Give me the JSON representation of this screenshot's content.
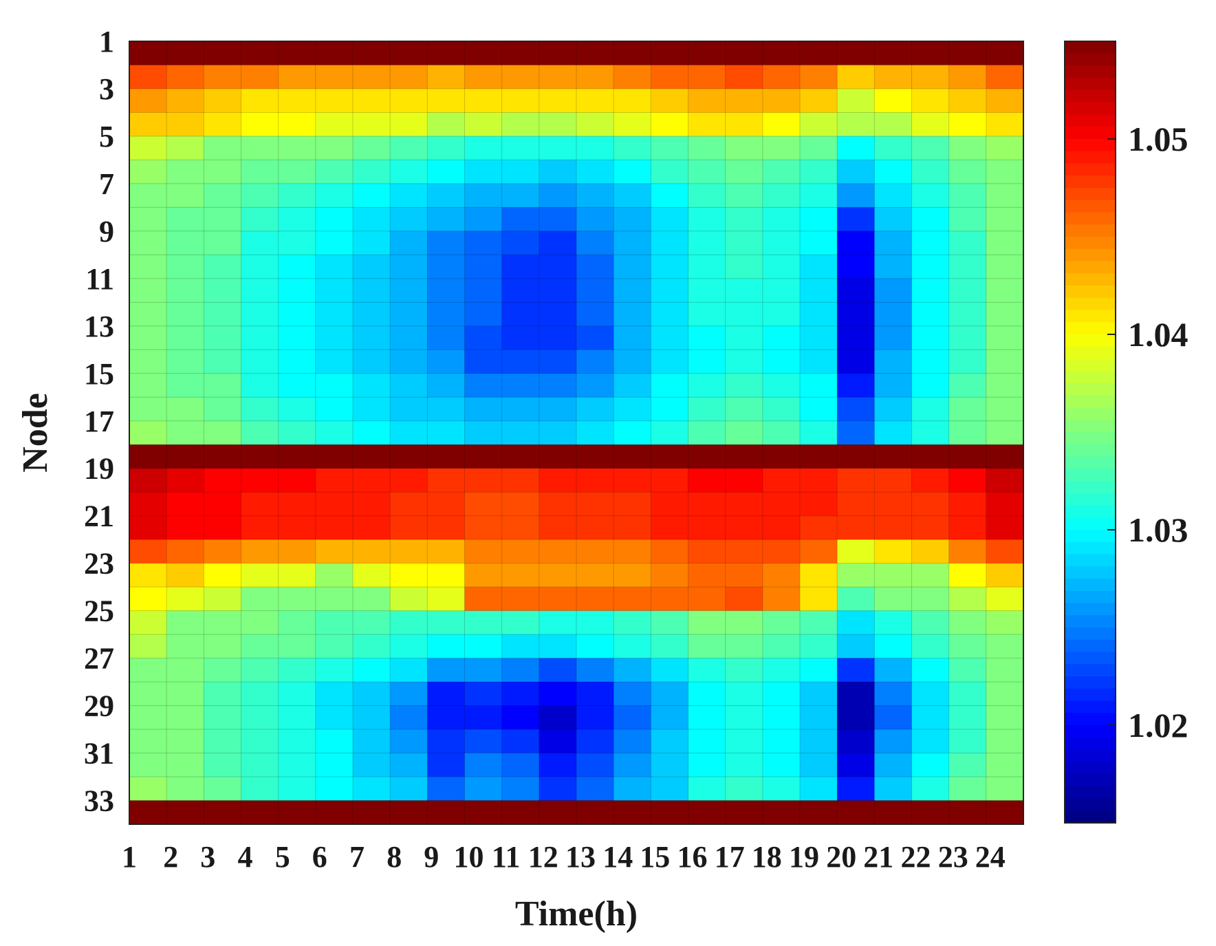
{
  "chart_data": {
    "type": "heatmap",
    "title": "",
    "xlabel": "Time(h)",
    "ylabel": "Node",
    "x_categories": [
      1,
      2,
      3,
      4,
      5,
      6,
      7,
      8,
      9,
      10,
      11,
      12,
      13,
      14,
      15,
      16,
      17,
      18,
      19,
      20,
      21,
      22,
      23,
      24
    ],
    "x_tick_labels": [
      "1",
      "2",
      "3",
      "4",
      "5",
      "6",
      "7",
      "8",
      "9",
      "10",
      "11",
      "12",
      "13",
      "14",
      "15",
      "16",
      "17",
      "18",
      "19",
      "20",
      "21",
      "22",
      "23",
      "24"
    ],
    "y_categories": [
      1,
      2,
      3,
      4,
      5,
      6,
      7,
      8,
      9,
      10,
      11,
      12,
      13,
      14,
      15,
      16,
      17,
      18,
      19,
      20,
      21,
      22,
      23,
      24,
      25,
      26,
      27,
      28,
      29,
      30,
      31,
      32,
      33
    ],
    "y_tick_labels": [
      "1",
      "3",
      "5",
      "7",
      "9",
      "11",
      "13",
      "15",
      "17",
      "19",
      "21",
      "23",
      "25",
      "27",
      "29",
      "31",
      "33"
    ],
    "colorbar": {
      "colormap": "jet",
      "range": [
        1.015,
        1.055
      ],
      "tick_values": [
        1.02,
        1.03,
        1.04,
        1.05
      ],
      "tick_labels": [
        "1.02",
        "1.03",
        "1.04",
        "1.05"
      ]
    },
    "grid": true,
    "values": [
      [
        1.055,
        1.055,
        1.055,
        1.055,
        1.055,
        1.055,
        1.055,
        1.055,
        1.055,
        1.055,
        1.055,
        1.055,
        1.055,
        1.055,
        1.055,
        1.055,
        1.055,
        1.055,
        1.055,
        1.055,
        1.055,
        1.055,
        1.055,
        1.055
      ],
      [
        1.047,
        1.046,
        1.045,
        1.045,
        1.044,
        1.044,
        1.044,
        1.044,
        1.043,
        1.044,
        1.044,
        1.044,
        1.044,
        1.045,
        1.046,
        1.046,
        1.047,
        1.046,
        1.045,
        1.042,
        1.043,
        1.043,
        1.044,
        1.046
      ],
      [
        1.044,
        1.043,
        1.042,
        1.041,
        1.041,
        1.041,
        1.041,
        1.041,
        1.041,
        1.041,
        1.041,
        1.041,
        1.041,
        1.041,
        1.042,
        1.043,
        1.043,
        1.043,
        1.042,
        1.038,
        1.04,
        1.041,
        1.042,
        1.043
      ],
      [
        1.042,
        1.042,
        1.041,
        1.04,
        1.04,
        1.039,
        1.039,
        1.039,
        1.037,
        1.038,
        1.037,
        1.037,
        1.038,
        1.039,
        1.04,
        1.041,
        1.041,
        1.04,
        1.038,
        1.037,
        1.037,
        1.039,
        1.04,
        1.041
      ],
      [
        1.038,
        1.037,
        1.035,
        1.035,
        1.035,
        1.035,
        1.034,
        1.033,
        1.032,
        1.031,
        1.031,
        1.031,
        1.031,
        1.032,
        1.033,
        1.034,
        1.035,
        1.035,
        1.034,
        1.03,
        1.032,
        1.033,
        1.035,
        1.036
      ],
      [
        1.036,
        1.035,
        1.035,
        1.034,
        1.034,
        1.033,
        1.032,
        1.031,
        1.03,
        1.029,
        1.029,
        1.028,
        1.029,
        1.03,
        1.032,
        1.033,
        1.034,
        1.033,
        1.032,
        1.028,
        1.03,
        1.032,
        1.034,
        1.035
      ],
      [
        1.035,
        1.035,
        1.034,
        1.033,
        1.032,
        1.031,
        1.03,
        1.029,
        1.028,
        1.027,
        1.027,
        1.026,
        1.027,
        1.028,
        1.03,
        1.032,
        1.033,
        1.032,
        1.031,
        1.026,
        1.029,
        1.031,
        1.033,
        1.035
      ],
      [
        1.035,
        1.034,
        1.034,
        1.032,
        1.031,
        1.03,
        1.029,
        1.028,
        1.027,
        1.026,
        1.024,
        1.024,
        1.026,
        1.027,
        1.029,
        1.031,
        1.032,
        1.031,
        1.03,
        1.022,
        1.028,
        1.03,
        1.033,
        1.035
      ],
      [
        1.035,
        1.034,
        1.034,
        1.031,
        1.031,
        1.03,
        1.029,
        1.027,
        1.025,
        1.024,
        1.023,
        1.022,
        1.025,
        1.027,
        1.029,
        1.031,
        1.032,
        1.031,
        1.03,
        1.02,
        1.027,
        1.03,
        1.032,
        1.035
      ],
      [
        1.035,
        1.034,
        1.033,
        1.031,
        1.03,
        1.029,
        1.028,
        1.027,
        1.025,
        1.024,
        1.022,
        1.022,
        1.024,
        1.027,
        1.029,
        1.031,
        1.032,
        1.031,
        1.029,
        1.02,
        1.027,
        1.03,
        1.032,
        1.035
      ],
      [
        1.035,
        1.034,
        1.033,
        1.031,
        1.03,
        1.029,
        1.028,
        1.027,
        1.025,
        1.024,
        1.022,
        1.022,
        1.024,
        1.027,
        1.029,
        1.031,
        1.031,
        1.031,
        1.029,
        1.019,
        1.026,
        1.03,
        1.032,
        1.035
      ],
      [
        1.035,
        1.034,
        1.033,
        1.031,
        1.03,
        1.029,
        1.028,
        1.027,
        1.025,
        1.024,
        1.022,
        1.022,
        1.024,
        1.027,
        1.029,
        1.031,
        1.031,
        1.031,
        1.029,
        1.019,
        1.026,
        1.03,
        1.032,
        1.035
      ],
      [
        1.035,
        1.034,
        1.033,
        1.031,
        1.03,
        1.029,
        1.028,
        1.027,
        1.025,
        1.023,
        1.022,
        1.022,
        1.023,
        1.027,
        1.029,
        1.03,
        1.031,
        1.03,
        1.029,
        1.019,
        1.026,
        1.03,
        1.032,
        1.035
      ],
      [
        1.035,
        1.034,
        1.033,
        1.031,
        1.03,
        1.029,
        1.028,
        1.027,
        1.026,
        1.023,
        1.023,
        1.023,
        1.025,
        1.027,
        1.029,
        1.03,
        1.031,
        1.03,
        1.029,
        1.019,
        1.027,
        1.03,
        1.032,
        1.035
      ],
      [
        1.035,
        1.034,
        1.034,
        1.031,
        1.03,
        1.03,
        1.029,
        1.028,
        1.027,
        1.025,
        1.025,
        1.025,
        1.026,
        1.028,
        1.03,
        1.031,
        1.032,
        1.031,
        1.03,
        1.021,
        1.027,
        1.03,
        1.033,
        1.035
      ],
      [
        1.035,
        1.035,
        1.034,
        1.032,
        1.031,
        1.03,
        1.029,
        1.028,
        1.028,
        1.027,
        1.027,
        1.027,
        1.028,
        1.029,
        1.03,
        1.032,
        1.033,
        1.032,
        1.03,
        1.023,
        1.028,
        1.031,
        1.034,
        1.035
      ],
      [
        1.036,
        1.035,
        1.035,
        1.033,
        1.032,
        1.031,
        1.03,
        1.029,
        1.029,
        1.028,
        1.028,
        1.028,
        1.029,
        1.03,
        1.031,
        1.033,
        1.034,
        1.033,
        1.031,
        1.024,
        1.029,
        1.031,
        1.034,
        1.035
      ],
      [
        1.055,
        1.055,
        1.055,
        1.055,
        1.055,
        1.055,
        1.055,
        1.055,
        1.055,
        1.055,
        1.055,
        1.055,
        1.055,
        1.055,
        1.055,
        1.055,
        1.055,
        1.055,
        1.055,
        1.055,
        1.055,
        1.055,
        1.055,
        1.055
      ],
      [
        1.052,
        1.051,
        1.05,
        1.05,
        1.05,
        1.049,
        1.049,
        1.049,
        1.048,
        1.048,
        1.048,
        1.049,
        1.049,
        1.049,
        1.049,
        1.05,
        1.05,
        1.049,
        1.049,
        1.048,
        1.048,
        1.049,
        1.05,
        1.052
      ],
      [
        1.051,
        1.05,
        1.05,
        1.049,
        1.049,
        1.049,
        1.049,
        1.048,
        1.048,
        1.047,
        1.047,
        1.048,
        1.048,
        1.048,
        1.049,
        1.049,
        1.049,
        1.049,
        1.049,
        1.048,
        1.048,
        1.048,
        1.049,
        1.051
      ],
      [
        1.051,
        1.05,
        1.05,
        1.049,
        1.049,
        1.049,
        1.049,
        1.048,
        1.048,
        1.047,
        1.047,
        1.048,
        1.048,
        1.048,
        1.049,
        1.049,
        1.049,
        1.049,
        1.048,
        1.048,
        1.048,
        1.048,
        1.049,
        1.051
      ],
      [
        1.047,
        1.046,
        1.045,
        1.044,
        1.044,
        1.043,
        1.043,
        1.043,
        1.043,
        1.045,
        1.045,
        1.045,
        1.045,
        1.045,
        1.046,
        1.047,
        1.047,
        1.047,
        1.046,
        1.039,
        1.041,
        1.042,
        1.045,
        1.047
      ],
      [
        1.041,
        1.042,
        1.04,
        1.039,
        1.039,
        1.036,
        1.039,
        1.04,
        1.04,
        1.044,
        1.044,
        1.044,
        1.044,
        1.044,
        1.045,
        1.046,
        1.046,
        1.045,
        1.041,
        1.036,
        1.036,
        1.036,
        1.04,
        1.042
      ],
      [
        1.04,
        1.039,
        1.038,
        1.035,
        1.035,
        1.035,
        1.035,
        1.038,
        1.039,
        1.046,
        1.046,
        1.046,
        1.046,
        1.046,
        1.046,
        1.046,
        1.047,
        1.045,
        1.041,
        1.033,
        1.035,
        1.035,
        1.037,
        1.039
      ],
      [
        1.038,
        1.035,
        1.035,
        1.035,
        1.034,
        1.033,
        1.033,
        1.032,
        1.032,
        1.032,
        1.032,
        1.031,
        1.031,
        1.032,
        1.033,
        1.035,
        1.035,
        1.034,
        1.033,
        1.029,
        1.031,
        1.033,
        1.035,
        1.036
      ],
      [
        1.037,
        1.035,
        1.035,
        1.034,
        1.034,
        1.033,
        1.032,
        1.031,
        1.03,
        1.03,
        1.029,
        1.029,
        1.03,
        1.031,
        1.032,
        1.034,
        1.034,
        1.033,
        1.032,
        1.028,
        1.03,
        1.032,
        1.034,
        1.035
      ],
      [
        1.035,
        1.035,
        1.034,
        1.033,
        1.032,
        1.031,
        1.03,
        1.029,
        1.026,
        1.026,
        1.025,
        1.023,
        1.025,
        1.027,
        1.029,
        1.031,
        1.032,
        1.031,
        1.03,
        1.022,
        1.027,
        1.03,
        1.033,
        1.035
      ],
      [
        1.035,
        1.035,
        1.033,
        1.032,
        1.031,
        1.029,
        1.028,
        1.026,
        1.021,
        1.022,
        1.021,
        1.02,
        1.021,
        1.025,
        1.027,
        1.03,
        1.031,
        1.03,
        1.028,
        1.017,
        1.025,
        1.029,
        1.032,
        1.035
      ],
      [
        1.035,
        1.035,
        1.033,
        1.032,
        1.031,
        1.029,
        1.028,
        1.025,
        1.021,
        1.021,
        1.02,
        1.018,
        1.021,
        1.024,
        1.027,
        1.03,
        1.031,
        1.03,
        1.028,
        1.017,
        1.024,
        1.029,
        1.032,
        1.035
      ],
      [
        1.035,
        1.035,
        1.033,
        1.032,
        1.031,
        1.03,
        1.028,
        1.026,
        1.022,
        1.023,
        1.022,
        1.019,
        1.022,
        1.025,
        1.028,
        1.03,
        1.031,
        1.03,
        1.028,
        1.018,
        1.026,
        1.029,
        1.032,
        1.035
      ],
      [
        1.035,
        1.035,
        1.033,
        1.032,
        1.031,
        1.03,
        1.028,
        1.027,
        1.022,
        1.025,
        1.024,
        1.021,
        1.023,
        1.026,
        1.028,
        1.03,
        1.031,
        1.03,
        1.028,
        1.019,
        1.027,
        1.03,
        1.033,
        1.035
      ],
      [
        1.036,
        1.035,
        1.034,
        1.032,
        1.031,
        1.03,
        1.029,
        1.028,
        1.024,
        1.026,
        1.025,
        1.022,
        1.024,
        1.027,
        1.028,
        1.031,
        1.032,
        1.031,
        1.029,
        1.021,
        1.028,
        1.031,
        1.034,
        1.035
      ],
      [
        1.055,
        1.055,
        1.055,
        1.055,
        1.055,
        1.055,
        1.055,
        1.055,
        1.055,
        1.055,
        1.055,
        1.055,
        1.055,
        1.055,
        1.055,
        1.055,
        1.055,
        1.055,
        1.055,
        1.055,
        1.055,
        1.055,
        1.055,
        1.055
      ]
    ]
  }
}
